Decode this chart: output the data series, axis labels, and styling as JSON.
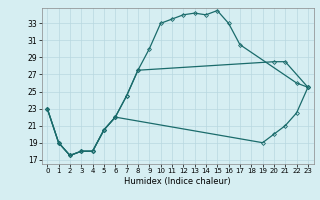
{
  "xlabel": "Humidex (Indice chaleur)",
  "bg_color": "#d6eef2",
  "grid_color": "#b8d8e0",
  "line_color": "#1a6b6b",
  "xlim": [
    -0.5,
    23.5
  ],
  "ylim": [
    16.5,
    34.8
  ],
  "yticks": [
    17,
    19,
    21,
    23,
    25,
    27,
    29,
    31,
    33
  ],
  "xticks": [
    0,
    1,
    2,
    3,
    4,
    5,
    6,
    7,
    8,
    9,
    10,
    11,
    12,
    13,
    14,
    15,
    16,
    17,
    18,
    19,
    20,
    21,
    22,
    23
  ],
  "series1_x": [
    0,
    1,
    2,
    3,
    4,
    5,
    6,
    7,
    8,
    9,
    10,
    11,
    12,
    13,
    14,
    15,
    16,
    17,
    22,
    23
  ],
  "series1_y": [
    23,
    19,
    17.5,
    18,
    18,
    20.5,
    22,
    24.5,
    27.5,
    30,
    33,
    33.5,
    34,
    34.2,
    34,
    34.5,
    33,
    30.5,
    26,
    25.5
  ],
  "series2_x": [
    0,
    1,
    2,
    3,
    4,
    5,
    6,
    7,
    8,
    20,
    21,
    23
  ],
  "series2_y": [
    23,
    19,
    17.5,
    18,
    18,
    20.5,
    22,
    24.5,
    27.5,
    28.5,
    28.5,
    25.5
  ],
  "series3_x": [
    0,
    1,
    2,
    3,
    4,
    5,
    6,
    19,
    20,
    21,
    22,
    23
  ],
  "series3_y": [
    23,
    19,
    17.5,
    18,
    18,
    20.5,
    22,
    19,
    20,
    21,
    22.5,
    25.5
  ]
}
